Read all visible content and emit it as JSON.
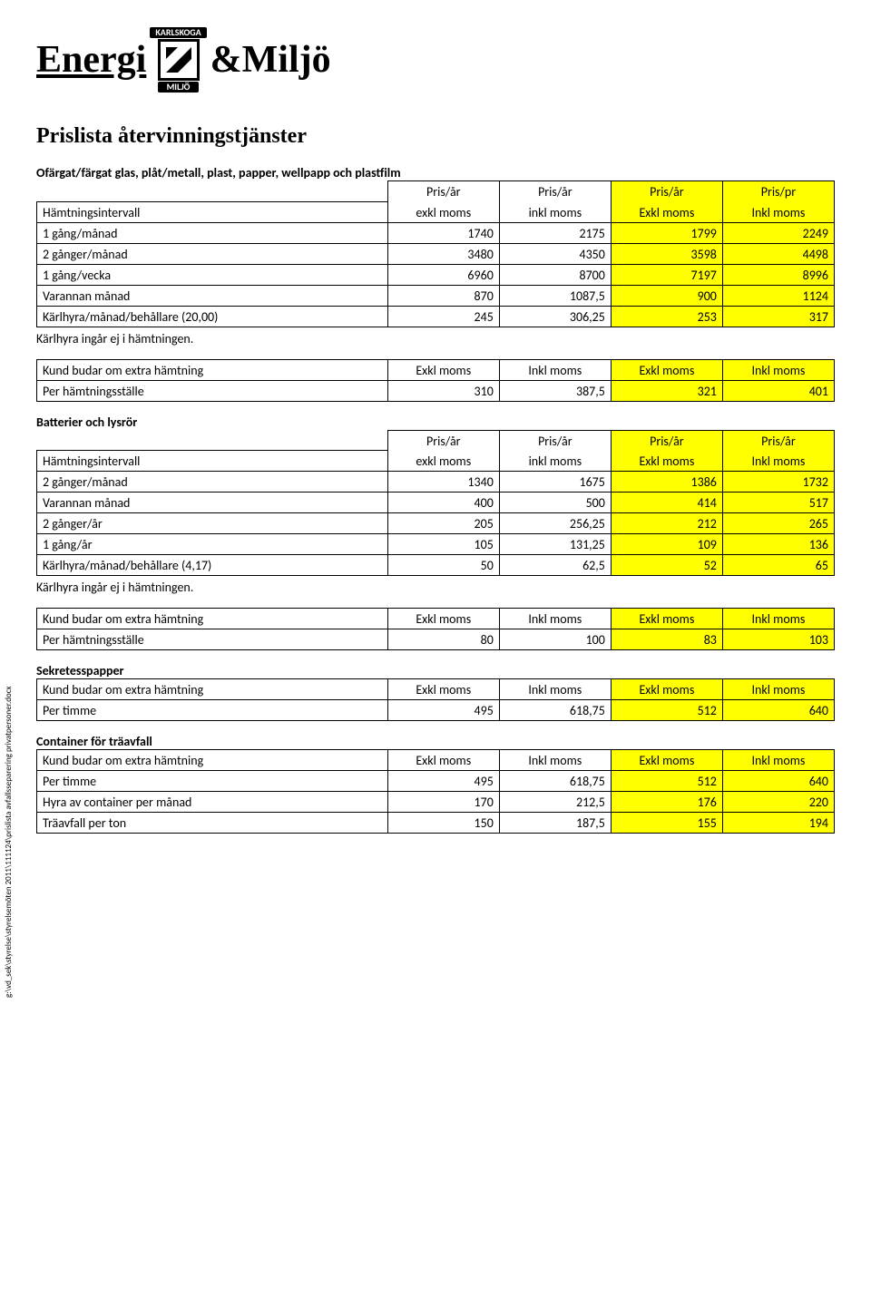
{
  "logo": {
    "left": "Energi",
    "top_badge": "KARLSKOGA",
    "bot_badge": "MILJÖ",
    "right": "&Miljö"
  },
  "title": "Prislista återvinningstjänster",
  "side_path": "g:\\vd_sek\\styrelse\\styrelsemöten 2011\\111124\\prislista avfallsseparering privatpersoner.docx",
  "colors": {
    "highlight": "#ffff00",
    "border": "#000000"
  },
  "sec1": {
    "heading": "Ofärgat/färgat glas, plåt/metall, plast, papper, wellpapp och plastfilm",
    "head_row1": [
      "",
      "Pris/år",
      "Pris/år",
      "Pris/år",
      "Pris/pr"
    ],
    "head_row2": [
      "Hämtningsintervall",
      "exkl moms",
      "inkl moms",
      "Exkl moms",
      "Inkl moms"
    ],
    "rows": [
      [
        "1 gång/månad",
        "1740",
        "2175",
        "1799",
        "2249"
      ],
      [
        "2 gånger/månad",
        "3480",
        "4350",
        "3598",
        "4498"
      ],
      [
        "1 gång/vecka",
        "6960",
        "8700",
        "7197",
        "8996"
      ],
      [
        "Varannan månad",
        "870",
        "1087,5",
        "900",
        "1124"
      ],
      [
        "Kärlhyra/månad/behållare (20,00)",
        "245",
        "306,25",
        "253",
        "317"
      ]
    ],
    "note": "Kärlhyra ingår ej i hämtningen.",
    "extra_head": [
      "Kund budar om extra hämtning",
      "Exkl moms",
      "Inkl moms",
      "Exkl moms",
      "Inkl moms"
    ],
    "extra_row": [
      "Per hämtningsställe",
      "310",
      "387,5",
      "321",
      "401"
    ]
  },
  "sec2": {
    "heading": "Batterier och lysrör",
    "head_row1": [
      "",
      "Pris/år",
      "Pris/år",
      "Pris/år",
      "Pris/år"
    ],
    "head_row2": [
      "Hämtningsintervall",
      "exkl moms",
      "inkl moms",
      "Exkl moms",
      "Inkl moms"
    ],
    "rows": [
      [
        "2 gånger/månad",
        "1340",
        "1675",
        "1386",
        "1732"
      ],
      [
        "Varannan månad",
        "400",
        "500",
        "414",
        "517"
      ],
      [
        "2 gånger/år",
        "205",
        "256,25",
        "212",
        "265"
      ],
      [
        "1 gång/år",
        "105",
        "131,25",
        "109",
        "136"
      ],
      [
        "Kärlhyra/månad/behållare (4,17)",
        "50",
        "62,5",
        "52",
        "65"
      ]
    ],
    "note": "Kärlhyra ingår ej i hämtningen.",
    "extra_head": [
      "Kund budar om extra hämtning",
      "Exkl moms",
      "Inkl moms",
      "Exkl moms",
      "Inkl moms"
    ],
    "extra_row": [
      "Per hämtningsställe",
      "80",
      "100",
      "83",
      "103"
    ]
  },
  "sec3": {
    "heading": "Sekretesspapper",
    "head": [
      "Kund budar om extra hämtning",
      "Exkl moms",
      "Inkl moms",
      "Exkl moms",
      "Inkl moms"
    ],
    "rows": [
      [
        "Per timme",
        "495",
        "618,75",
        "512",
        "640"
      ]
    ]
  },
  "sec4": {
    "heading": "Container för träavfall",
    "head": [
      "Kund budar om extra hämtning",
      "Exkl moms",
      "Inkl moms",
      "Exkl moms",
      "Inkl moms"
    ],
    "rows": [
      [
        "Per timme",
        "495",
        "618,75",
        "512",
        "640"
      ],
      [
        "Hyra av container per månad",
        "170",
        "212,5",
        "176",
        "220"
      ],
      [
        "Träavfall per ton",
        "150",
        "187,5",
        "155",
        "194"
      ]
    ]
  }
}
